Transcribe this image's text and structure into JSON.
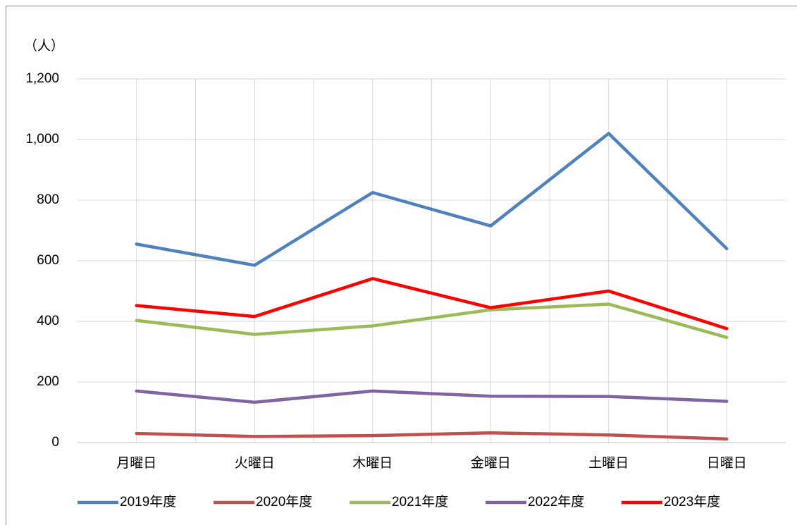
{
  "chart_data": {
    "type": "line",
    "y_unit_label": "（人）",
    "categories": [
      "月曜日",
      "火曜日",
      "木曜日",
      "金曜日",
      "土曜日",
      "日曜日"
    ],
    "series": [
      {
        "name": "2019年度",
        "color": "#4f81bd",
        "values": [
          655,
          585,
          825,
          715,
          1020,
          640
        ]
      },
      {
        "name": "2020年度",
        "color": "#c0504d",
        "values": [
          30,
          20,
          23,
          32,
          25,
          12
        ]
      },
      {
        "name": "2021年度",
        "color": "#9bbb59",
        "values": [
          403,
          357,
          385,
          438,
          457,
          347
        ]
      },
      {
        "name": "2022年度",
        "color": "#8064a2",
        "values": [
          170,
          133,
          170,
          153,
          152,
          136
        ]
      },
      {
        "name": "2023年度",
        "color": "#ff0000",
        "values": [
          452,
          416,
          541,
          445,
          500,
          376
        ]
      }
    ],
    "ylim": [
      0,
      1200
    ],
    "yticks": [
      0,
      200,
      400,
      600,
      800,
      {
        "value": 1000,
        "label": "1,000"
      },
      {
        "value": 1200,
        "label": "1,200"
      }
    ],
    "grid": true,
    "legend": "bottom"
  }
}
